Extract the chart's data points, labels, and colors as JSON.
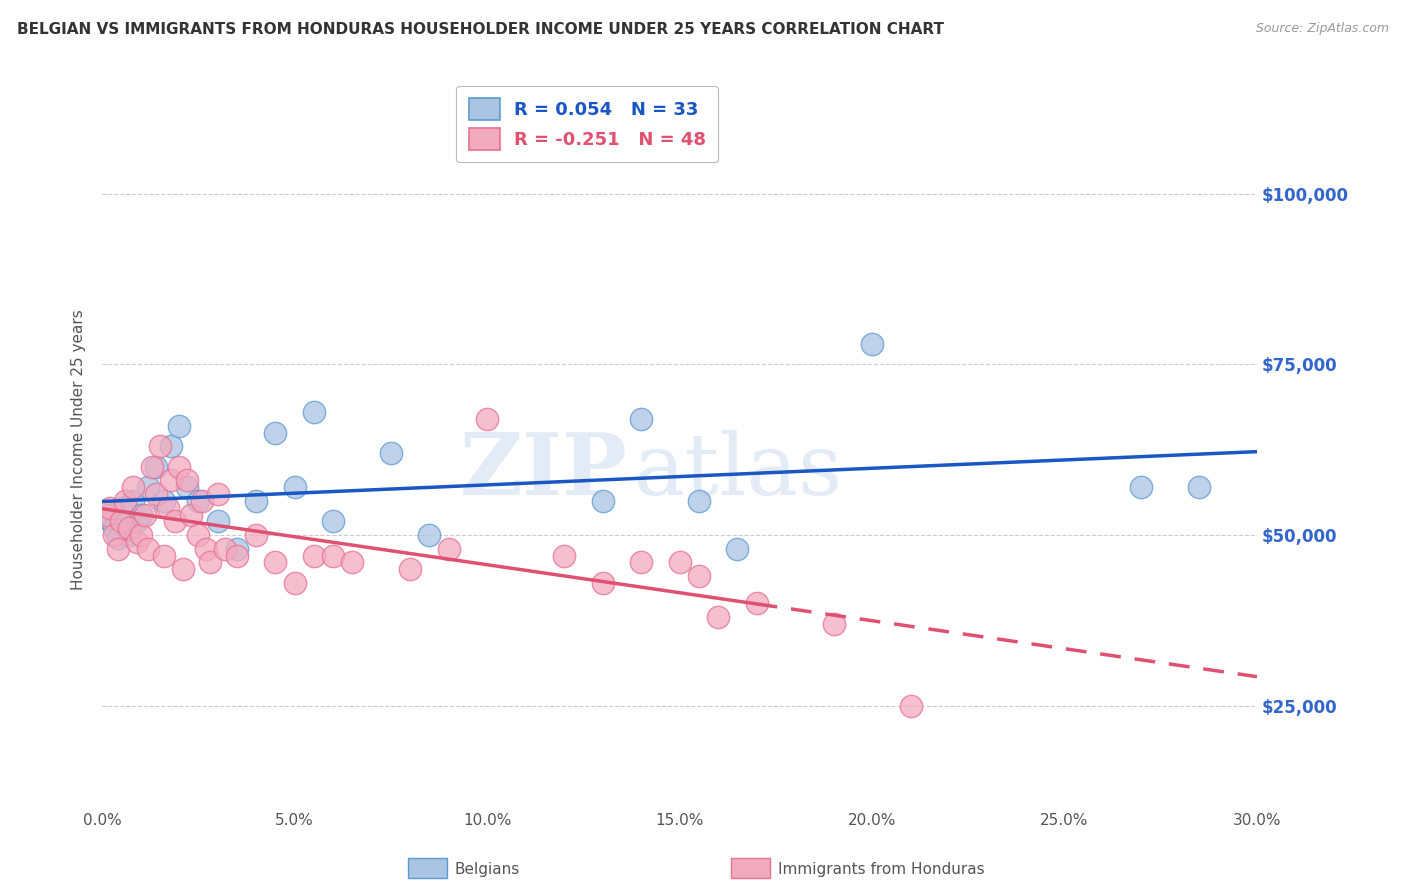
{
  "title": "BELGIAN VS IMMIGRANTS FROM HONDURAS HOUSEHOLDER INCOME UNDER 25 YEARS CORRELATION CHART",
  "source": "Source: ZipAtlas.com",
  "ylabel": "Householder Income Under 25 years",
  "xlim": [
    0.0,
    0.3
  ],
  "ylim": [
    10000,
    115000
  ],
  "xtick_labels": [
    "0.0%",
    "",
    "5.0%",
    "",
    "10.0%",
    "",
    "15.0%",
    "",
    "20.0%",
    "",
    "25.0%",
    "",
    "30.0%"
  ],
  "xtick_vals": [
    0.0,
    0.025,
    0.05,
    0.075,
    0.1,
    0.125,
    0.15,
    0.175,
    0.2,
    0.225,
    0.25,
    0.275,
    0.3
  ],
  "ytick_vals": [
    25000,
    50000,
    75000,
    100000
  ],
  "ytick_labels": [
    "$25,000",
    "$50,000",
    "$75,000",
    "$100,000"
  ],
  "belgian_color": "#aac4e2",
  "honduran_color": "#f2aabf",
  "belgian_edge": "#5b9bd5",
  "honduran_edge": "#e87090",
  "line_blue": "#1a56c4",
  "line_pink": "#e05070",
  "legend_R_blue": "0.054",
  "legend_N_blue": "33",
  "legend_R_pink": "-0.251",
  "legend_N_pink": "48",
  "belgian_scatter": [
    [
      0.001,
      52500
    ],
    [
      0.002,
      53000
    ],
    [
      0.003,
      51000
    ],
    [
      0.004,
      49500
    ],
    [
      0.005,
      54000
    ],
    [
      0.006,
      52000
    ],
    [
      0.007,
      50000
    ],
    [
      0.008,
      55000
    ],
    [
      0.009,
      52000
    ],
    [
      0.01,
      53000
    ],
    [
      0.012,
      57000
    ],
    [
      0.014,
      60000
    ],
    [
      0.016,
      55000
    ],
    [
      0.018,
      63000
    ],
    [
      0.02,
      66000
    ],
    [
      0.022,
      57000
    ],
    [
      0.025,
      55000
    ],
    [
      0.03,
      52000
    ],
    [
      0.035,
      48000
    ],
    [
      0.04,
      55000
    ],
    [
      0.045,
      65000
    ],
    [
      0.05,
      57000
    ],
    [
      0.055,
      68000
    ],
    [
      0.06,
      52000
    ],
    [
      0.075,
      62000
    ],
    [
      0.085,
      50000
    ],
    [
      0.13,
      55000
    ],
    [
      0.14,
      67000
    ],
    [
      0.155,
      55000
    ],
    [
      0.165,
      48000
    ],
    [
      0.2,
      78000
    ],
    [
      0.27,
      57000
    ],
    [
      0.285,
      57000
    ]
  ],
  "honduran_scatter": [
    [
      0.001,
      53000
    ],
    [
      0.002,
      54000
    ],
    [
      0.003,
      50000
    ],
    [
      0.004,
      48000
    ],
    [
      0.005,
      52000
    ],
    [
      0.006,
      55000
    ],
    [
      0.007,
      51000
    ],
    [
      0.008,
      57000
    ],
    [
      0.009,
      49000
    ],
    [
      0.01,
      50000
    ],
    [
      0.011,
      53000
    ],
    [
      0.012,
      48000
    ],
    [
      0.013,
      60000
    ],
    [
      0.014,
      56000
    ],
    [
      0.015,
      63000
    ],
    [
      0.016,
      47000
    ],
    [
      0.017,
      54000
    ],
    [
      0.018,
      58000
    ],
    [
      0.019,
      52000
    ],
    [
      0.02,
      60000
    ],
    [
      0.021,
      45000
    ],
    [
      0.022,
      58000
    ],
    [
      0.023,
      53000
    ],
    [
      0.025,
      50000
    ],
    [
      0.026,
      55000
    ],
    [
      0.027,
      48000
    ],
    [
      0.028,
      46000
    ],
    [
      0.03,
      56000
    ],
    [
      0.032,
      48000
    ],
    [
      0.035,
      47000
    ],
    [
      0.04,
      50000
    ],
    [
      0.045,
      46000
    ],
    [
      0.05,
      43000
    ],
    [
      0.055,
      47000
    ],
    [
      0.06,
      47000
    ],
    [
      0.065,
      46000
    ],
    [
      0.08,
      45000
    ],
    [
      0.09,
      48000
    ],
    [
      0.1,
      67000
    ],
    [
      0.12,
      47000
    ],
    [
      0.13,
      43000
    ],
    [
      0.14,
      46000
    ],
    [
      0.15,
      46000
    ],
    [
      0.155,
      44000
    ],
    [
      0.16,
      38000
    ],
    [
      0.17,
      40000
    ],
    [
      0.19,
      37000
    ],
    [
      0.21,
      25000
    ]
  ],
  "pink_line_solid_end": 0.17,
  "watermark_zip": "ZIP",
  "watermark_atlas": "atlas",
  "background_color": "#ffffff",
  "grid_color": "#cccccc"
}
